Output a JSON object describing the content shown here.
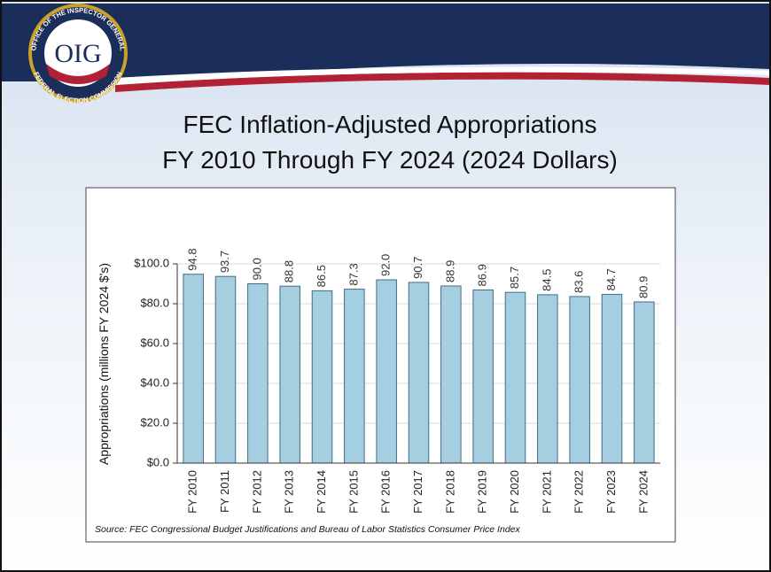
{
  "logo": {
    "top_text": "OFFICE OF THE INSPECTOR GENERAL",
    "bottom_text": "FEDERAL ELECTION COMMISSION",
    "center_text": "OIG"
  },
  "title": [
    "FEC Inflation-Adjusted Appropriations",
    "FY 2010 Through FY 2024 (2024 Dollars)"
  ],
  "chart_data": {
    "type": "bar",
    "y_label": "Appropriations (millions FY 2024 $'s)",
    "note": "Source:  FEC Congressional Budget Justifications and Bureau of Labor Statistics Consumer Price Index",
    "categories": [
      "FY 2010",
      "FY 2011",
      "FY 2012",
      "FY 2013",
      "FY 2014",
      "FY 2015",
      "FY 2016",
      "FY 2017",
      "FY 2018",
      "FY 2019",
      "FY 2020",
      "FY 2021",
      "FY 2022",
      "FY 2023",
      "FY 2024"
    ],
    "values": [
      94.8,
      93.7,
      90.0,
      88.8,
      86.5,
      87.3,
      92.0,
      90.7,
      88.9,
      86.9,
      85.7,
      84.5,
      83.6,
      84.7,
      80.9
    ],
    "value_labels": [
      "94.8",
      "93.7",
      "90.0",
      "88.8",
      "86.5",
      "87.3",
      "92.0",
      "90.7",
      "88.9",
      "86.9",
      "85.7",
      "84.5",
      "83.6",
      "84.7",
      "80.9"
    ],
    "color": "#a5cfe0",
    "ylim": [
      0,
      100
    ],
    "yticks": [
      {
        "value": 0,
        "label": "$0.0"
      },
      {
        "value": 20,
        "label": "$20.0"
      },
      {
        "value": 40,
        "label": "$40.0"
      },
      {
        "value": 60,
        "label": "$60.0"
      },
      {
        "value": 80,
        "label": "$80.0"
      },
      {
        "value": 100,
        "label": "$100.0"
      }
    ],
    "grid": true
  }
}
